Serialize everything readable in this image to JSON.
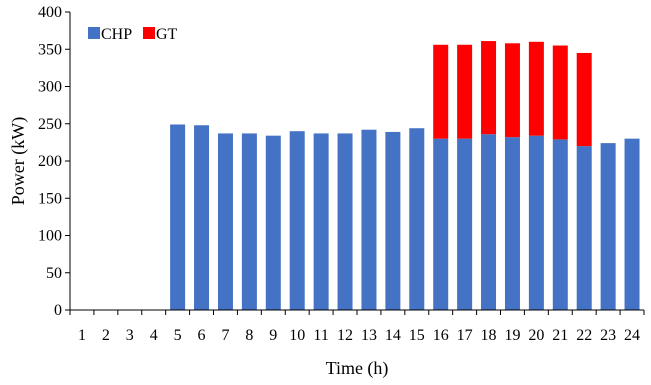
{
  "chart_data": {
    "type": "bar",
    "stacked": true,
    "title": "",
    "xlabel": "Time (h)",
    "ylabel": "Power (kW)",
    "ylim": [
      0,
      400
    ],
    "yticks": [
      0,
      50,
      100,
      150,
      200,
      250,
      300,
      350,
      400
    ],
    "grid": false,
    "legend_position": "top-left",
    "categories": [
      "1",
      "2",
      "3",
      "4",
      "5",
      "6",
      "7",
      "8",
      "9",
      "10",
      "11",
      "12",
      "13",
      "14",
      "15",
      "16",
      "17",
      "18",
      "19",
      "20",
      "21",
      "22",
      "23",
      "24"
    ],
    "series": [
      {
        "name": "CHP",
        "color": "#4472C4",
        "values": [
          0,
          0,
          0,
          0,
          249,
          248,
          237,
          237,
          234,
          240,
          237,
          237,
          242,
          239,
          244,
          230,
          230,
          236,
          232,
          234,
          229,
          220,
          224,
          230
        ]
      },
      {
        "name": "GT",
        "color": "#FF0000",
        "values": [
          0,
          0,
          0,
          0,
          0,
          0,
          0,
          0,
          0,
          0,
          0,
          0,
          0,
          0,
          0,
          126,
          126,
          125,
          126,
          126,
          126,
          125,
          0,
          0
        ]
      }
    ]
  }
}
